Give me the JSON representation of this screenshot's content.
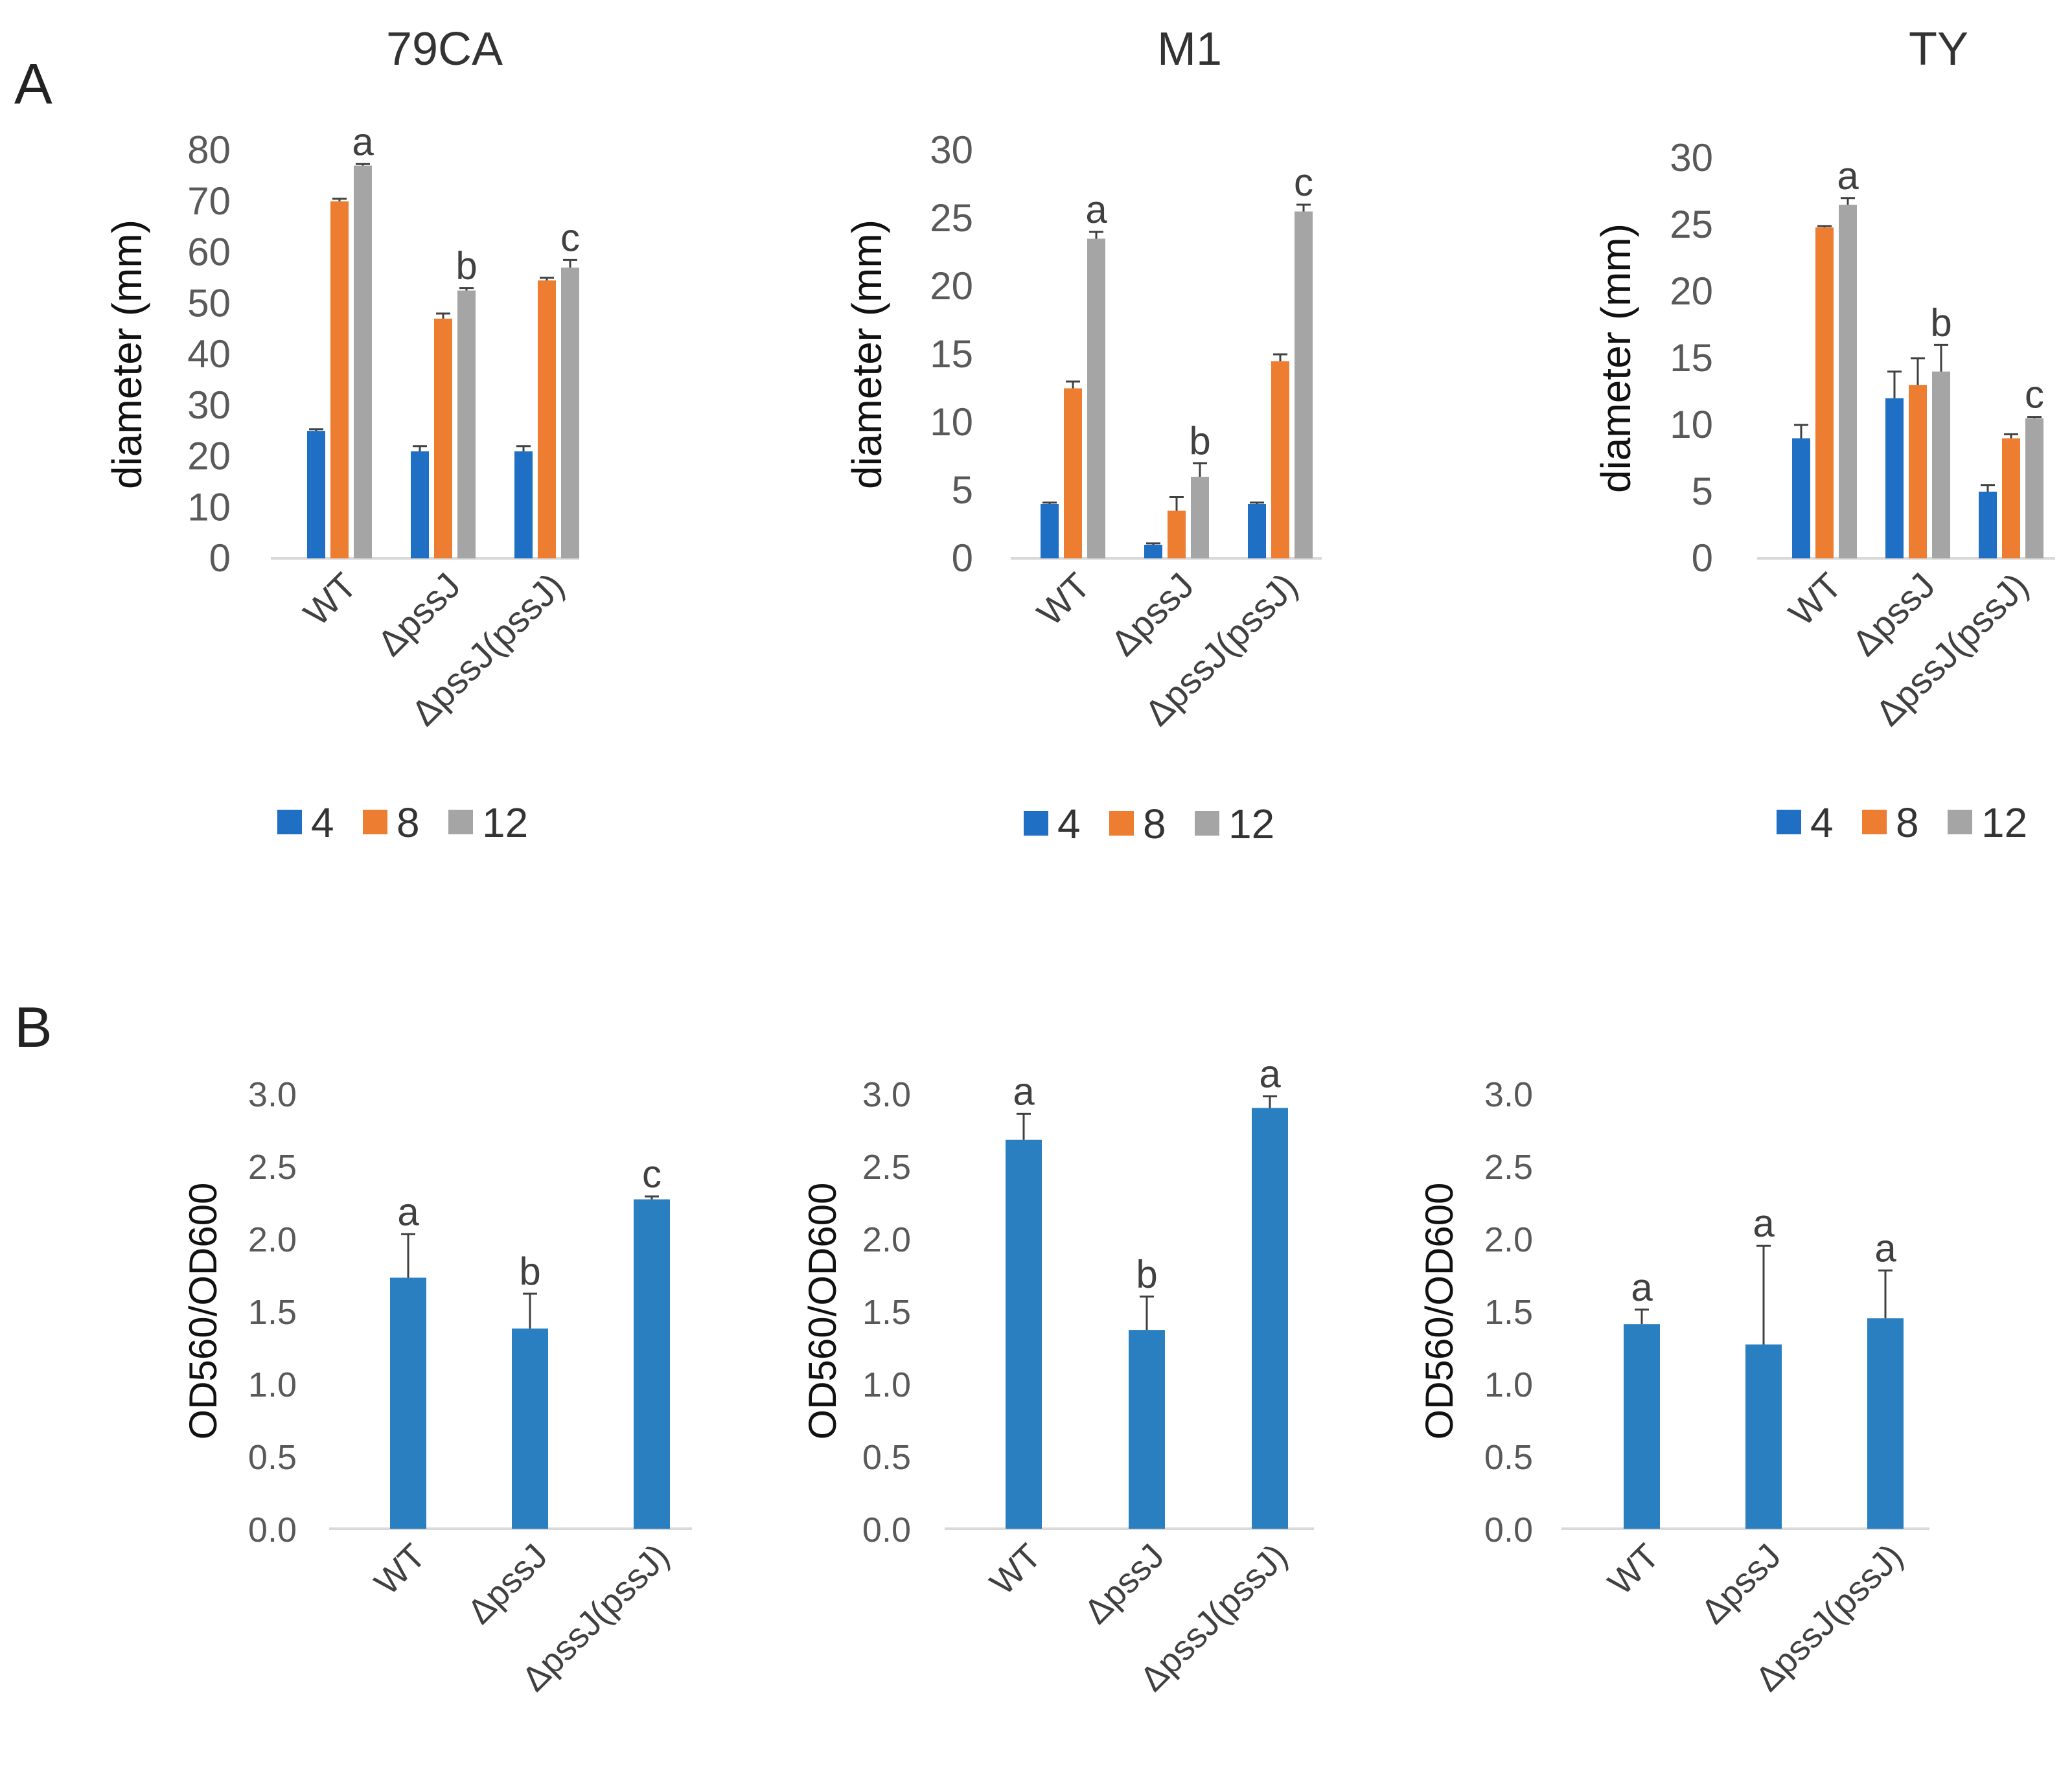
{
  "panels": {
    "a_label": "A",
    "b_label": "B"
  },
  "chart_data": [
    {
      "panel": "A",
      "type": "bar",
      "title": "79CA",
      "ylabel": "diameter (mm)",
      "xlabel": "",
      "ylim": [
        0,
        80
      ],
      "yticks": [
        0,
        10,
        20,
        30,
        40,
        50,
        60,
        70,
        80
      ],
      "categories": [
        "WT",
        "ΔpssJ",
        "ΔpssJ(pssJ)"
      ],
      "series": [
        {
          "name": "4",
          "color": "#1f6fc5",
          "values": [
            25,
            21,
            21
          ],
          "errors": [
            0.3,
            1,
            1
          ]
        },
        {
          "name": "8",
          "color": "#ed7d31",
          "values": [
            70,
            47,
            54.5
          ],
          "errors": [
            0.5,
            1,
            0.5
          ]
        },
        {
          "name": "12",
          "color": "#a5a5a5",
          "values": [
            77,
            52.5,
            57
          ],
          "errors": [
            0.3,
            0.5,
            1.5
          ]
        }
      ],
      "sig_labels": [
        "a",
        "b",
        "c"
      ],
      "legend": "bottom"
    },
    {
      "panel": "A",
      "type": "bar",
      "title": "M1",
      "ylabel": "diameter (mm)",
      "xlabel": "",
      "ylim": [
        0,
        30
      ],
      "yticks": [
        0,
        5,
        10,
        15,
        20,
        25,
        30
      ],
      "categories": [
        "WT",
        "ΔpssJ",
        "ΔpssJ(pssJ)"
      ],
      "series": [
        {
          "name": "4",
          "color": "#1f6fc5",
          "values": [
            4,
            1,
            4
          ],
          "errors": [
            0.1,
            0.1,
            0.1
          ]
        },
        {
          "name": "8",
          "color": "#ed7d31",
          "values": [
            12.5,
            3.5,
            14.5
          ],
          "errors": [
            0.5,
            1,
            0.5
          ]
        },
        {
          "name": "12",
          "color": "#a5a5a5",
          "values": [
            23.5,
            6,
            25.5
          ],
          "errors": [
            0.5,
            1,
            0.5
          ]
        }
      ],
      "sig_labels": [
        "a",
        "b",
        "c"
      ],
      "legend": "bottom"
    },
    {
      "panel": "A",
      "type": "bar",
      "title": "TY",
      "ylabel": "diameter (mm)",
      "xlabel": "",
      "ylim": [
        0,
        30
      ],
      "yticks": [
        0,
        5,
        10,
        15,
        20,
        25,
        30
      ],
      "categories": [
        "WT",
        "ΔpssJ",
        "ΔpssJ(pssJ)"
      ],
      "series": [
        {
          "name": "4",
          "color": "#1f6fc5",
          "values": [
            9,
            12,
            5
          ],
          "errors": [
            1,
            2,
            0.5
          ]
        },
        {
          "name": "8",
          "color": "#ed7d31",
          "values": [
            24.8,
            13,
            9
          ],
          "errors": [
            0.1,
            2,
            0.3
          ]
        },
        {
          "name": "12",
          "color": "#a5a5a5",
          "values": [
            26.5,
            14,
            10.5
          ],
          "errors": [
            0.5,
            2,
            0.1
          ]
        }
      ],
      "sig_labels": [
        "a",
        "b",
        "c"
      ],
      "legend": "bottom"
    },
    {
      "panel": "B",
      "type": "bar",
      "title": "",
      "ylabel": "OD560/OD600",
      "xlabel": "",
      "ylim": [
        0,
        3.0
      ],
      "yticks": [
        "0.0",
        "0.5",
        "1.0",
        "1.5",
        "2.0",
        "2.5",
        "3.0"
      ],
      "categories": [
        "WT",
        "ΔpssJ",
        "ΔpssJ(pssJ)"
      ],
      "series": [
        {
          "name": "OD560/OD600",
          "color": "#2a7fc1",
          "values": [
            1.73,
            1.38,
            2.27
          ],
          "errors": [
            0.3,
            0.24,
            0.02
          ]
        }
      ],
      "sig_labels": [
        "a",
        "b",
        "c"
      ]
    },
    {
      "panel": "B",
      "type": "bar",
      "title": "",
      "ylabel": "OD560/OD600",
      "xlabel": "",
      "ylim": [
        0,
        3.0
      ],
      "yticks": [
        "0.0",
        "0.5",
        "1.0",
        "1.5",
        "2.0",
        "2.5",
        "3.0"
      ],
      "categories": [
        "WT",
        "ΔpssJ",
        "ΔpssJ(pssJ)"
      ],
      "series": [
        {
          "name": "OD560/OD600",
          "color": "#2a7fc1",
          "values": [
            2.68,
            1.37,
            2.9
          ],
          "errors": [
            0.18,
            0.23,
            0.08
          ]
        }
      ],
      "sig_labels": [
        "a",
        "b",
        "a"
      ]
    },
    {
      "panel": "B",
      "type": "bar",
      "title": "",
      "ylabel": "OD560/OD600",
      "xlabel": "",
      "ylim": [
        0,
        3.0
      ],
      "yticks": [
        "0.0",
        "0.5",
        "1.0",
        "1.5",
        "2.0",
        "2.5",
        "3.0"
      ],
      "categories": [
        "WT",
        "ΔpssJ",
        "ΔpssJ(pssJ)"
      ],
      "series": [
        {
          "name": "OD560/OD600",
          "color": "#2a7fc1",
          "values": [
            1.41,
            1.27,
            1.45
          ],
          "errors": [
            0.1,
            0.68,
            0.33
          ]
        }
      ],
      "sig_labels": [
        "a",
        "a",
        "a"
      ]
    }
  ]
}
